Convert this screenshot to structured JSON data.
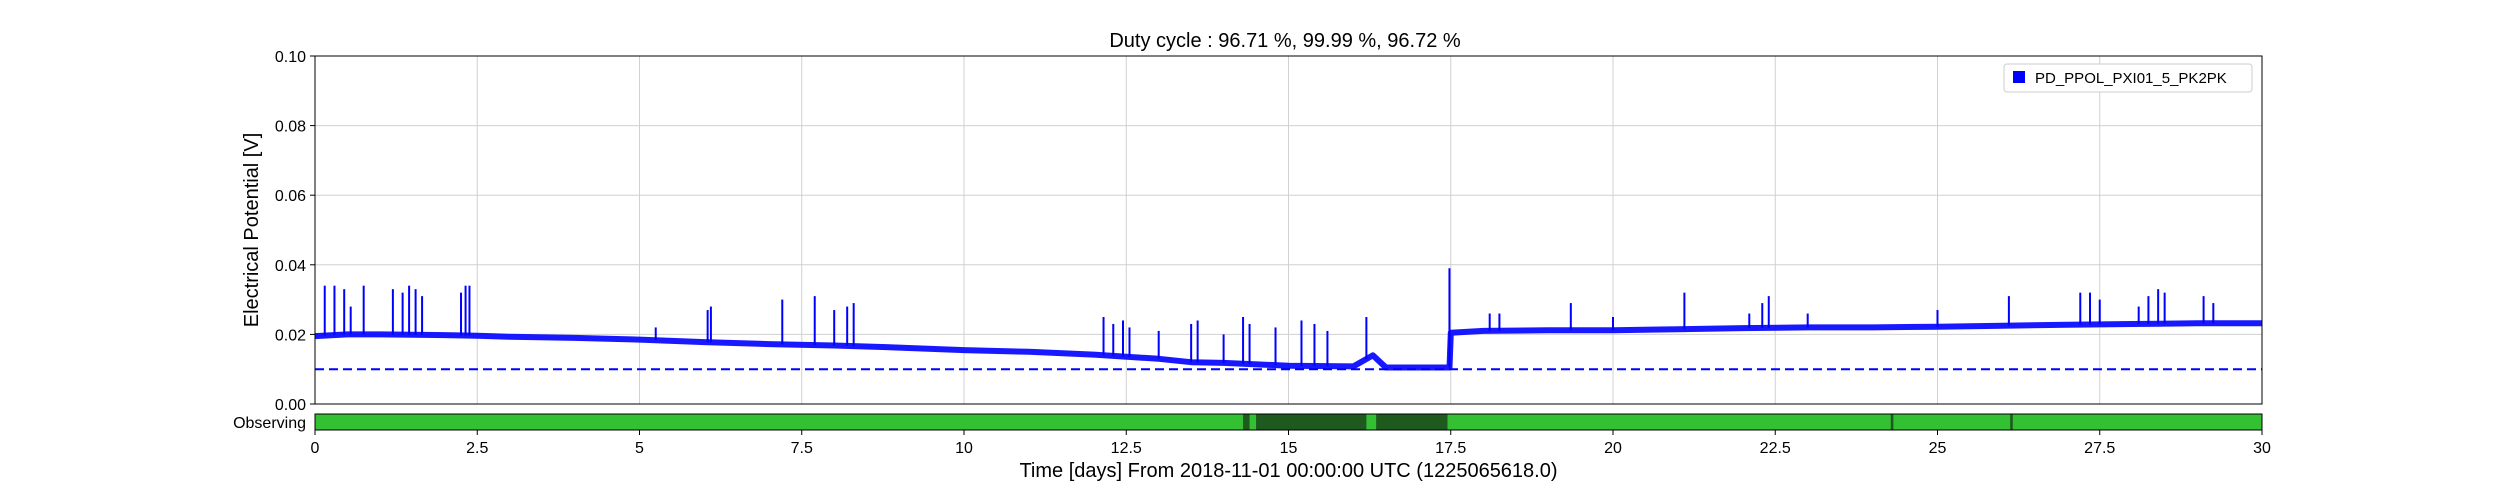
{
  "chart_data": {
    "type": "line",
    "title": "Duty cycle : 96.71 %, 99.99 %, 96.72 %",
    "xlabel": "Time [days] From 2018-11-01 00:00:00 UTC (1225065618.0)",
    "ylabel": "Electrical Potential [V]",
    "xlim": [
      0,
      30
    ],
    "ylim": [
      0,
      0.1
    ],
    "grid": true,
    "legend_position": "top-right",
    "x_ticks": [
      "0",
      "2.5",
      "5",
      "7.5",
      "10",
      "12.5",
      "15",
      "17.5",
      "20",
      "22.5",
      "25",
      "27.5",
      "30"
    ],
    "y_ticks": [
      "0.00",
      "0.02",
      "0.04",
      "0.06",
      "0.08",
      "0.10"
    ],
    "series": [
      {
        "name": "PD_PPOL_PXI01_5_PK2PK",
        "color": "#0000ff",
        "x": [
          0,
          0.5,
          1,
          2,
          2.5,
          3,
          4,
          5,
          6,
          7,
          8,
          9,
          10,
          11,
          12,
          13,
          13.5,
          14,
          15,
          16,
          16.3,
          16.5,
          17,
          17.48,
          17.5,
          18,
          19,
          20,
          21,
          22,
          23,
          24,
          25,
          26,
          27,
          28,
          29,
          30
        ],
        "y": [
          0.0195,
          0.02,
          0.02,
          0.0198,
          0.0196,
          0.0193,
          0.019,
          0.0185,
          0.0178,
          0.0172,
          0.0168,
          0.0162,
          0.0155,
          0.015,
          0.0142,
          0.013,
          0.012,
          0.0118,
          0.011,
          0.0108,
          0.014,
          0.0105,
          0.0105,
          0.0105,
          0.0205,
          0.021,
          0.0212,
          0.0212,
          0.0215,
          0.0218,
          0.022,
          0.022,
          0.0222,
          0.0225,
          0.0228,
          0.023,
          0.0232,
          0.0232
        ],
        "spikes": [
          [
            0.15,
            0.034
          ],
          [
            0.3,
            0.034
          ],
          [
            0.45,
            0.033
          ],
          [
            0.55,
            0.028
          ],
          [
            0.75,
            0.034
          ],
          [
            1.2,
            0.033
          ],
          [
            1.35,
            0.032
          ],
          [
            1.45,
            0.034
          ],
          [
            1.55,
            0.033
          ],
          [
            1.65,
            0.031
          ],
          [
            2.25,
            0.032
          ],
          [
            2.32,
            0.034
          ],
          [
            2.38,
            0.034
          ],
          [
            5.25,
            0.022
          ],
          [
            6.05,
            0.027
          ],
          [
            6.1,
            0.028
          ],
          [
            7.2,
            0.03
          ],
          [
            7.7,
            0.031
          ],
          [
            8.0,
            0.027
          ],
          [
            8.2,
            0.028
          ],
          [
            8.3,
            0.029
          ],
          [
            12.15,
            0.025
          ],
          [
            12.3,
            0.023
          ],
          [
            12.45,
            0.024
          ],
          [
            12.55,
            0.022
          ],
          [
            13.0,
            0.021
          ],
          [
            13.5,
            0.023
          ],
          [
            13.6,
            0.024
          ],
          [
            14.0,
            0.02
          ],
          [
            14.3,
            0.025
          ],
          [
            14.4,
            0.023
          ],
          [
            14.8,
            0.022
          ],
          [
            15.2,
            0.024
          ],
          [
            15.4,
            0.023
          ],
          [
            15.6,
            0.021
          ],
          [
            16.2,
            0.025
          ],
          [
            17.48,
            0.039
          ],
          [
            18.1,
            0.026
          ],
          [
            18.25,
            0.026
          ],
          [
            19.35,
            0.029
          ],
          [
            20.0,
            0.025
          ],
          [
            21.1,
            0.032
          ],
          [
            22.1,
            0.026
          ],
          [
            22.3,
            0.029
          ],
          [
            22.4,
            0.031
          ],
          [
            23.0,
            0.026
          ],
          [
            25.0,
            0.027
          ],
          [
            26.1,
            0.031
          ],
          [
            27.2,
            0.032
          ],
          [
            27.35,
            0.032
          ],
          [
            27.5,
            0.03
          ],
          [
            28.1,
            0.028
          ],
          [
            28.25,
            0.031
          ],
          [
            28.4,
            0.033
          ],
          [
            28.5,
            0.032
          ],
          [
            29.1,
            0.031
          ],
          [
            29.25,
            0.029
          ]
        ]
      },
      {
        "name": "",
        "color": "#0000ff",
        "style": "dashed",
        "x": [
          0,
          30
        ],
        "y": [
          0.01,
          0.01
        ]
      }
    ],
    "segment_bar": {
      "label": "Observing",
      "color": "#33c033",
      "gap_color": "#1e5a1e",
      "gaps": [
        [
          14.3,
          14.4
        ],
        [
          14.5,
          16.2
        ],
        [
          16.35,
          17.45
        ],
        [
          24.28,
          24.32
        ],
        [
          26.12,
          26.16
        ]
      ]
    }
  }
}
